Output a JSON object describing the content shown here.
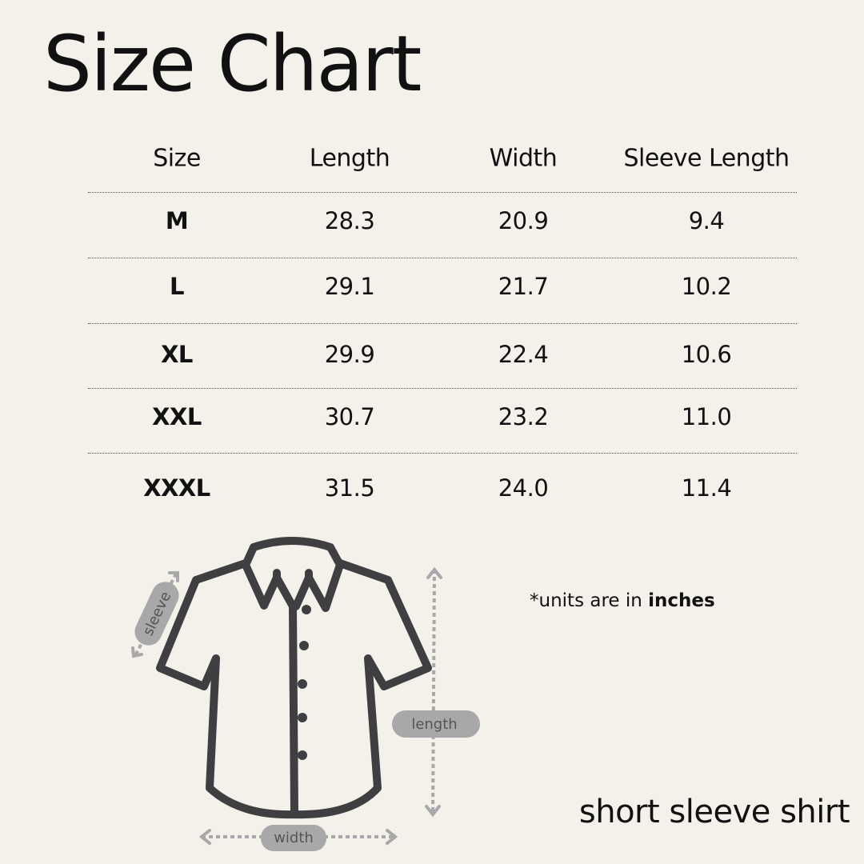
{
  "title": "Size Chart",
  "table": {
    "headers": [
      "Size",
      "Length",
      "Width",
      "Sleeve Length"
    ],
    "rows": [
      {
        "size": "M",
        "length": "28.3",
        "width": "20.9",
        "sleeve": "9.4"
      },
      {
        "size": "L",
        "length": "29.1",
        "width": "21.7",
        "sleeve": "10.2"
      },
      {
        "size": "XL",
        "length": "29.9",
        "width": "22.4",
        "sleeve": "10.6"
      },
      {
        "size": "XXL",
        "length": "30.7",
        "width": "23.2",
        "sleeve": "11.0"
      },
      {
        "size": "XXXL",
        "length": "31.5",
        "width": "24.0",
        "sleeve": "11.4"
      }
    ]
  },
  "note": {
    "prefix": "*units are in ",
    "emphasis": "inches"
  },
  "diagram": {
    "sleeve_label": "sleeve",
    "length_label": "length",
    "width_label": "width"
  },
  "caption": "short sleeve shirt",
  "colors": {
    "background": "#f4f0ea",
    "outline": "#3f3f41",
    "measure": "#a8a8a8"
  }
}
